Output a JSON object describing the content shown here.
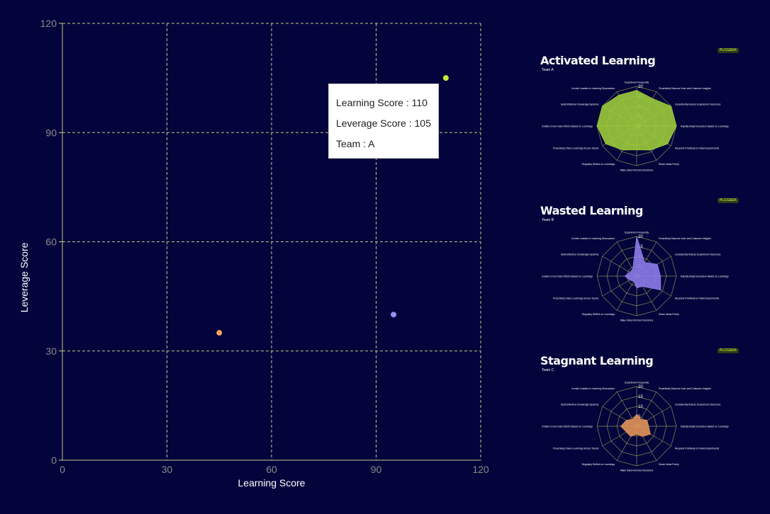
{
  "chart_data": {
    "type": "scatter",
    "xlabel": "Learning Score",
    "ylabel": "Leverage Score",
    "xlim": [
      0,
      120
    ],
    "ylim": [
      0,
      120
    ],
    "xticks": [
      0,
      30,
      60,
      90,
      120
    ],
    "yticks": [
      0,
      30,
      60,
      90,
      120
    ],
    "grid": true,
    "points": [
      {
        "x": 110,
        "y": 105,
        "team": "A",
        "color": "#c5e83a"
      },
      {
        "x": 95,
        "y": 40,
        "team": "B",
        "color": "#9b8cf0"
      },
      {
        "x": 45,
        "y": 35,
        "team": "C",
        "color": "#f4a25a"
      }
    ]
  },
  "tooltip": {
    "learning": "Learning Score : 110",
    "leverage": "Leverage Score : 105",
    "team": "Team : A"
  },
  "panels": [
    {
      "title": "Activated Learning",
      "team": "Team A",
      "logo": "PLCGEEK",
      "fill": "#9ccb3b",
      "values": [
        18,
        16,
        20,
        20,
        18,
        14,
        12,
        14,
        18,
        20,
        20,
        18
      ]
    },
    {
      "title": "Wasted Learning",
      "team": "Team B",
      "logo": "PLCGEEK",
      "fill": "#8a7ae8",
      "values": [
        20,
        8,
        12,
        12,
        14,
        6,
        6,
        3,
        4,
        6,
        4,
        4
      ]
    },
    {
      "title": "Stagnant Learning",
      "team": "Team C",
      "logo": "PLCGEEK",
      "fill": "#e0925a",
      "values": [
        6,
        4,
        6,
        6,
        8,
        6,
        4,
        6,
        6,
        8,
        6,
        4
      ]
    }
  ],
  "radar": {
    "ticks": [
      "20",
      "15",
      "10",
      "5",
      "0"
    ],
    "axes": [
      "Experiment Frequently",
      "Proactively Discover User and Customer Insights",
      "Consistently Assess Experiment Outcomes",
      "Rapidly Adapt Execution Based on Learnings",
      "Respond Positively to Failed Experiments",
      "Share Ideas Freely",
      "Make Data-Informed Decisions",
      "Regularly Reflect on Learnings",
      "Proactively Share Learnings Across Teams",
      "Enable Cross-Team Efforts Based on Learnings",
      "Build Effective Knowledge Systems",
      "Involve Leaders in Learning Discussions"
    ]
  }
}
